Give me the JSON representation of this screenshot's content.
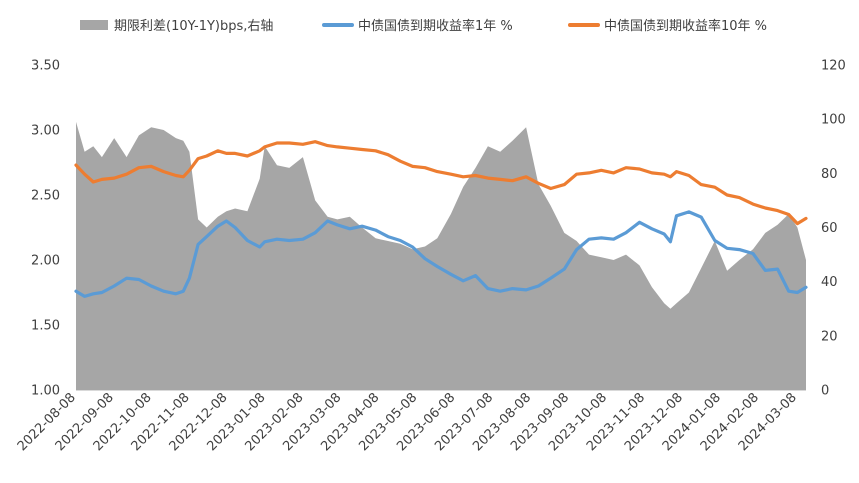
{
  "chart_data": {
    "type": "line",
    "legend": {
      "placement": "top",
      "items": [
        {
          "label": "期限利差(10Y-1Y)bps,右轴",
          "color": "#a6a6a6",
          "kind": "area"
        },
        {
          "label": "中债国债到期收益率1年 %",
          "color": "#5b9bd5",
          "kind": "line"
        },
        {
          "label": "中债国债到期收益率10年 %",
          "color": "#ed7d31",
          "kind": "line"
        }
      ]
    },
    "y_left": {
      "range": [
        1.0,
        3.5
      ],
      "ticks": [
        "1.00",
        "1.50",
        "2.00",
        "2.50",
        "3.00",
        "3.50"
      ]
    },
    "y_right": {
      "range": [
        0,
        120
      ],
      "ticks": [
        "0",
        "20",
        "40",
        "60",
        "80",
        "100",
        "120"
      ]
    },
    "x": {
      "start": "2022-08-08",
      "end": "2024-03-22",
      "tick_labels": [
        "2022-08-08",
        "2022-09-08",
        "2022-10-08",
        "2022-11-08",
        "2022-12-08",
        "2023-01-08",
        "2023-02-08",
        "2023-03-08",
        "2023-04-08",
        "2023-05-08",
        "2023-06-08",
        "2023-07-08",
        "2023-08-08",
        "2023-09-08",
        "2023-10-08",
        "2023-11-08",
        "2023-12-08",
        "2024-01-08",
        "2024-02-08",
        "2024-03-08"
      ]
    },
    "grid": false,
    "series": [
      {
        "name": "期限利差(10Y-1Y)bps,右轴",
        "axis": "right",
        "color": "#a6a6a6",
        "dates": [
          "2022-08-08",
          "2022-08-15",
          "2022-08-22",
          "2022-08-29",
          "2022-09-08",
          "2022-09-18",
          "2022-09-28",
          "2022-10-08",
          "2022-10-18",
          "2022-10-28",
          "2022-11-03",
          "2022-11-08",
          "2022-11-15",
          "2022-11-22",
          "2022-12-01",
          "2022-12-08",
          "2022-12-15",
          "2022-12-25",
          "2023-01-04",
          "2023-01-08",
          "2023-01-18",
          "2023-01-28",
          "2023-02-08",
          "2023-02-18",
          "2023-02-28",
          "2023-03-08",
          "2023-03-18",
          "2023-03-28",
          "2023-04-08",
          "2023-04-18",
          "2023-04-28",
          "2023-05-08",
          "2023-05-18",
          "2023-05-28",
          "2023-06-08",
          "2023-06-18",
          "2023-06-28",
          "2023-07-08",
          "2023-07-18",
          "2023-07-28",
          "2023-08-08",
          "2023-08-18",
          "2023-08-28",
          "2023-09-08",
          "2023-09-18",
          "2023-09-28",
          "2023-10-08",
          "2023-10-18",
          "2023-10-28",
          "2023-11-08",
          "2023-11-18",
          "2023-11-28",
          "2023-12-03",
          "2023-12-08",
          "2023-12-18",
          "2023-12-28",
          "2024-01-08",
          "2024-01-18",
          "2024-01-28",
          "2024-02-08",
          "2024-02-18",
          "2024-02-28",
          "2024-03-08",
          "2024-03-15",
          "2024-03-22"
        ],
        "values": [
          99,
          88,
          90,
          86,
          93,
          86,
          94,
          97,
          96,
          93,
          92,
          88,
          63,
          60,
          64,
          66,
          67,
          66,
          78,
          90,
          83,
          82,
          86,
          70,
          64,
          63,
          64,
          60,
          56,
          55,
          54,
          52,
          53,
          56,
          65,
          75,
          82,
          90,
          88,
          92,
          97,
          76,
          68,
          58,
          55,
          50,
          49,
          48,
          50,
          46,
          38,
          32,
          30,
          32,
          36,
          45,
          55,
          44,
          48,
          52,
          58,
          61,
          65,
          60,
          48
        ]
      },
      {
        "name": "中债国债到期收益率1年 %",
        "axis": "left",
        "color": "#5b9bd5",
        "dates": [
          "2022-08-08",
          "2022-08-15",
          "2022-08-22",
          "2022-08-29",
          "2022-09-08",
          "2022-09-18",
          "2022-09-28",
          "2022-10-08",
          "2022-10-18",
          "2022-10-28",
          "2022-11-03",
          "2022-11-08",
          "2022-11-15",
          "2022-11-22",
          "2022-12-01",
          "2022-12-08",
          "2022-12-15",
          "2022-12-25",
          "2023-01-04",
          "2023-01-08",
          "2023-01-18",
          "2023-01-28",
          "2023-02-08",
          "2023-02-18",
          "2023-02-28",
          "2023-03-08",
          "2023-03-18",
          "2023-03-28",
          "2023-04-08",
          "2023-04-18",
          "2023-04-28",
          "2023-05-08",
          "2023-05-18",
          "2023-05-28",
          "2023-06-08",
          "2023-06-18",
          "2023-06-28",
          "2023-07-08",
          "2023-07-18",
          "2023-07-28",
          "2023-08-08",
          "2023-08-18",
          "2023-08-28",
          "2023-09-08",
          "2023-09-18",
          "2023-09-28",
          "2023-10-08",
          "2023-10-18",
          "2023-10-28",
          "2023-11-08",
          "2023-11-18",
          "2023-11-28",
          "2023-12-03",
          "2023-12-08",
          "2023-12-18",
          "2023-12-28",
          "2024-01-08",
          "2024-01-18",
          "2024-01-28",
          "2024-02-08",
          "2024-02-18",
          "2024-02-28",
          "2024-03-08",
          "2024-03-15",
          "2024-03-22"
        ],
        "values": [
          1.76,
          1.72,
          1.74,
          1.75,
          1.8,
          1.86,
          1.85,
          1.8,
          1.76,
          1.74,
          1.76,
          1.86,
          2.12,
          2.18,
          2.26,
          2.3,
          2.25,
          2.15,
          2.1,
          2.14,
          2.16,
          2.15,
          2.16,
          2.21,
          2.3,
          2.27,
          2.24,
          2.26,
          2.23,
          2.18,
          2.15,
          2.1,
          2.01,
          1.95,
          1.89,
          1.84,
          1.88,
          1.78,
          1.76,
          1.78,
          1.77,
          1.8,
          1.86,
          1.93,
          2.08,
          2.16,
          2.17,
          2.16,
          2.21,
          2.29,
          2.24,
          2.2,
          2.14,
          2.34,
          2.37,
          2.33,
          2.15,
          2.09,
          2.08,
          2.05,
          1.92,
          1.93,
          1.76,
          1.75,
          1.79
        ]
      },
      {
        "name": "中债国债到期收益率10年 %",
        "axis": "left",
        "color": "#ed7d31",
        "dates": [
          "2022-08-08",
          "2022-08-15",
          "2022-08-22",
          "2022-08-29",
          "2022-09-08",
          "2022-09-18",
          "2022-09-28",
          "2022-10-08",
          "2022-10-18",
          "2022-10-28",
          "2022-11-03",
          "2022-11-08",
          "2022-11-15",
          "2022-11-22",
          "2022-12-01",
          "2022-12-08",
          "2022-12-15",
          "2022-12-25",
          "2023-01-04",
          "2023-01-08",
          "2023-01-18",
          "2023-01-28",
          "2023-02-08",
          "2023-02-18",
          "2023-02-28",
          "2023-03-08",
          "2023-03-18",
          "2023-03-28",
          "2023-04-08",
          "2023-04-18",
          "2023-04-28",
          "2023-05-08",
          "2023-05-18",
          "2023-05-28",
          "2023-06-08",
          "2023-06-18",
          "2023-06-28",
          "2023-07-08",
          "2023-07-18",
          "2023-07-28",
          "2023-08-08",
          "2023-08-18",
          "2023-08-28",
          "2023-09-08",
          "2023-09-18",
          "2023-09-28",
          "2023-10-08",
          "2023-10-18",
          "2023-10-28",
          "2023-11-08",
          "2023-11-18",
          "2023-11-28",
          "2023-12-03",
          "2023-12-08",
          "2023-12-18",
          "2023-12-28",
          "2024-01-08",
          "2024-01-18",
          "2024-01-28",
          "2024-02-08",
          "2024-02-18",
          "2024-02-28",
          "2024-03-08",
          "2024-03-15",
          "2024-03-22"
        ],
        "values": [
          2.73,
          2.66,
          2.6,
          2.62,
          2.63,
          2.66,
          2.71,
          2.72,
          2.68,
          2.65,
          2.64,
          2.69,
          2.78,
          2.8,
          2.84,
          2.82,
          2.82,
          2.8,
          2.84,
          2.87,
          2.9,
          2.9,
          2.89,
          2.91,
          2.88,
          2.87,
          2.86,
          2.85,
          2.84,
          2.81,
          2.76,
          2.72,
          2.71,
          2.68,
          2.66,
          2.64,
          2.65,
          2.63,
          2.62,
          2.61,
          2.64,
          2.59,
          2.55,
          2.58,
          2.66,
          2.67,
          2.69,
          2.67,
          2.71,
          2.7,
          2.67,
          2.66,
          2.64,
          2.68,
          2.65,
          2.58,
          2.56,
          2.5,
          2.48,
          2.43,
          2.4,
          2.38,
          2.35,
          2.28,
          2.32
        ]
      }
    ]
  }
}
